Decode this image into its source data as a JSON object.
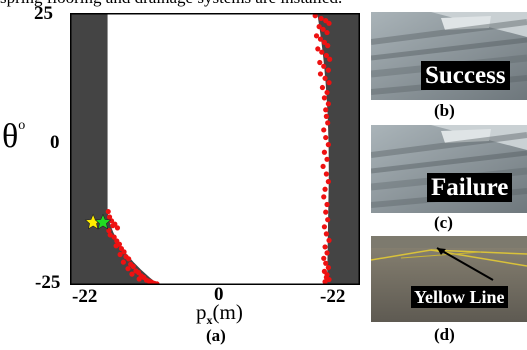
{
  "header_text": "spring flooring and drainage systems are installed.",
  "figure_a": {
    "ylabel": "θ",
    "ylabel_sup": "o",
    "xlabel_main": "p",
    "xlabel_sub": "x",
    "xlabel_unit": "(m)",
    "caption": "(a)",
    "y_ticks": [
      "25",
      "0",
      "-25"
    ],
    "x_ticks": [
      "-22",
      "0",
      "-22"
    ]
  },
  "chart_data": {
    "type": "scatter",
    "title": "",
    "xlabel": "px(m)",
    "ylabel": "θo",
    "x_tick_labels": [
      "-22",
      "0",
      "-22"
    ],
    "y_tick_labels": [
      "25",
      "0",
      "-25"
    ],
    "xlim": [
      -22,
      22
    ],
    "ylim": [
      -25,
      25
    ],
    "boundary_color": "#444444",
    "point_color": "#ee1111",
    "series": [
      {
        "x": [
          -16.2,
          -16,
          -15.7,
          -15.2,
          -14.8,
          -15.5,
          -16.1,
          -15.9,
          -15.3,
          -14.9,
          -14.5,
          -15,
          -14.2,
          -13.8,
          -14.4,
          -13.5,
          -13.1,
          -13.9,
          -12.8,
          -12.4,
          -13.2,
          -12.0,
          -11.6,
          -12.6,
          -11.2,
          -10.8,
          -11.5,
          -10.4,
          -10.0,
          -9.6,
          -9.8,
          -9.2,
          -8.8,
          15.2,
          16.1,
          16.8,
          17.3,
          15.8,
          16.4,
          17.0,
          15.4,
          16.0,
          16.6,
          17.1,
          15.6,
          16.2,
          16.9,
          17.4,
          15.9,
          16.5,
          17.2,
          16.0,
          16.7,
          17.3,
          16.3,
          17.0,
          16.6,
          17.2,
          16.8,
          16.9,
          17.1,
          16.5,
          16.8,
          17.2,
          16.6,
          17.0,
          16.4,
          16.9,
          17.2,
          16.7,
          16.5,
          17.0,
          16.8,
          17.1,
          16.6,
          16.9,
          17.3,
          16.7,
          17.0,
          16.5,
          16.8,
          17.2,
          16.6,
          17.0,
          16.9,
          17.3,
          16.7
        ],
        "y": [
          -11.5,
          -12.5,
          -13.2,
          -13.8,
          -14.5,
          -14.1,
          -15.0,
          -15.8,
          -16.2,
          -16.9,
          -17.5,
          -17.8,
          -18.3,
          -18.9,
          -19.4,
          -19.8,
          -20.2,
          -20.8,
          -21.2,
          -21.6,
          -22.0,
          -22.4,
          -22.7,
          -23.0,
          -23.3,
          -23.6,
          -23.9,
          -24.1,
          -24.3,
          -24.5,
          -24.6,
          -24.7,
          -24.8,
          24.5,
          24.0,
          23.6,
          23.1,
          22.5,
          22.0,
          21.4,
          20.8,
          20.2,
          19.6,
          19.0,
          18.4,
          17.8,
          17.2,
          16.5,
          15.9,
          15.2,
          14.5,
          13.8,
          13.0,
          12.2,
          11.3,
          10.4,
          9.4,
          8.3,
          7.2,
          6.0,
          4.8,
          3.5,
          2.1,
          0.8,
          -0.6,
          -1.9,
          -3.2,
          -4.6,
          -6.0,
          -7.4,
          -8.8,
          -10.2,
          -11.6,
          -13.0,
          -14.3,
          -15.6,
          -16.8,
          -18.0,
          -19.1,
          -20.1,
          -21.0,
          -21.8,
          -22.5,
          -23.1,
          -23.6,
          -24.0,
          -24.4
        ]
      }
    ],
    "markers": [
      {
        "name": "yellow-star",
        "x": -18.5,
        "y": -13.5,
        "color": "#ffee00"
      },
      {
        "name": "green-star",
        "x": -17.0,
        "y": -13.5,
        "color": "#22dd22"
      }
    ]
  },
  "panels": [
    {
      "tag": "Success",
      "caption": "(b)"
    },
    {
      "tag": "Failure",
      "caption": "(c)"
    },
    {
      "tag": "Yellow Line",
      "caption": "(d)"
    }
  ]
}
